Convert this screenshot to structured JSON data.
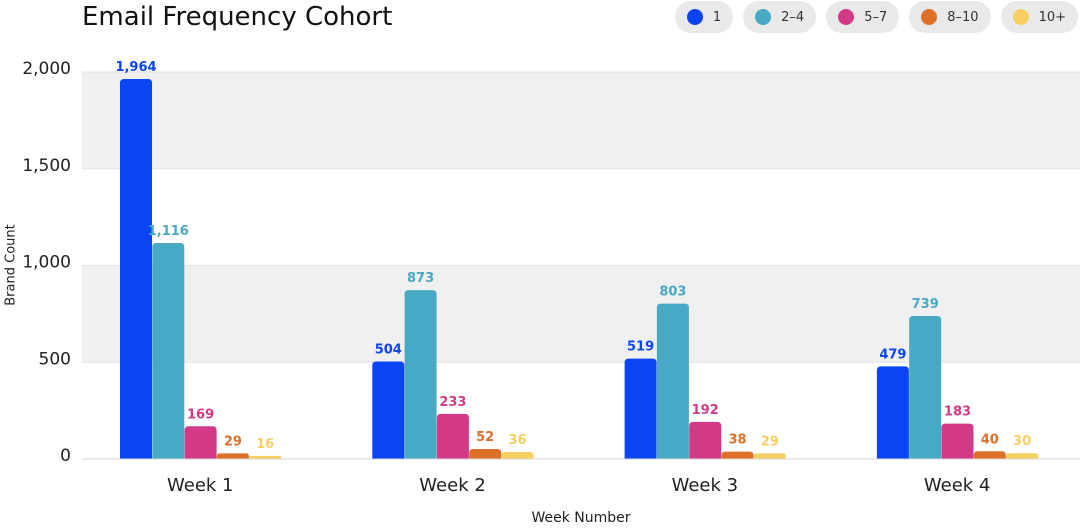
{
  "chart_data": {
    "type": "bar",
    "title": "Email Frequency Cohort",
    "xlabel": "Week Number",
    "ylabel": "Brand Count",
    "ylim": [
      0,
      2000
    ],
    "yticks": [
      0,
      500,
      1000,
      1500,
      2000
    ],
    "ytick_labels": [
      "0",
      "500",
      "1,000",
      "1,500",
      "2,000"
    ],
    "categories": [
      "Week 1",
      "Week 2",
      "Week 3",
      "Week 4"
    ],
    "legend_position": "top-right",
    "series": [
      {
        "name": "1",
        "color": "#0b44f5",
        "values": [
          1964,
          504,
          519,
          479
        ],
        "labels": [
          "1,964",
          "504",
          "519",
          "479"
        ]
      },
      {
        "name": "2–4",
        "color": "#47a9c4",
        "values": [
          1116,
          873,
          803,
          739
        ],
        "labels": [
          "1,116",
          "873",
          "803",
          "739"
        ]
      },
      {
        "name": "5–7",
        "color": "#d23a88",
        "values": [
          169,
          233,
          192,
          183
        ],
        "labels": [
          "169",
          "233",
          "192",
          "183"
        ]
      },
      {
        "name": "8–10",
        "color": "#dc7028",
        "values": [
          29,
          52,
          38,
          40
        ],
        "labels": [
          "29",
          "52",
          "38",
          "40"
        ]
      },
      {
        "name": "10+",
        "color": "#f5cf62",
        "values": [
          16,
          36,
          29,
          30
        ],
        "labels": [
          "16",
          "36",
          "29",
          "30"
        ]
      }
    ]
  }
}
